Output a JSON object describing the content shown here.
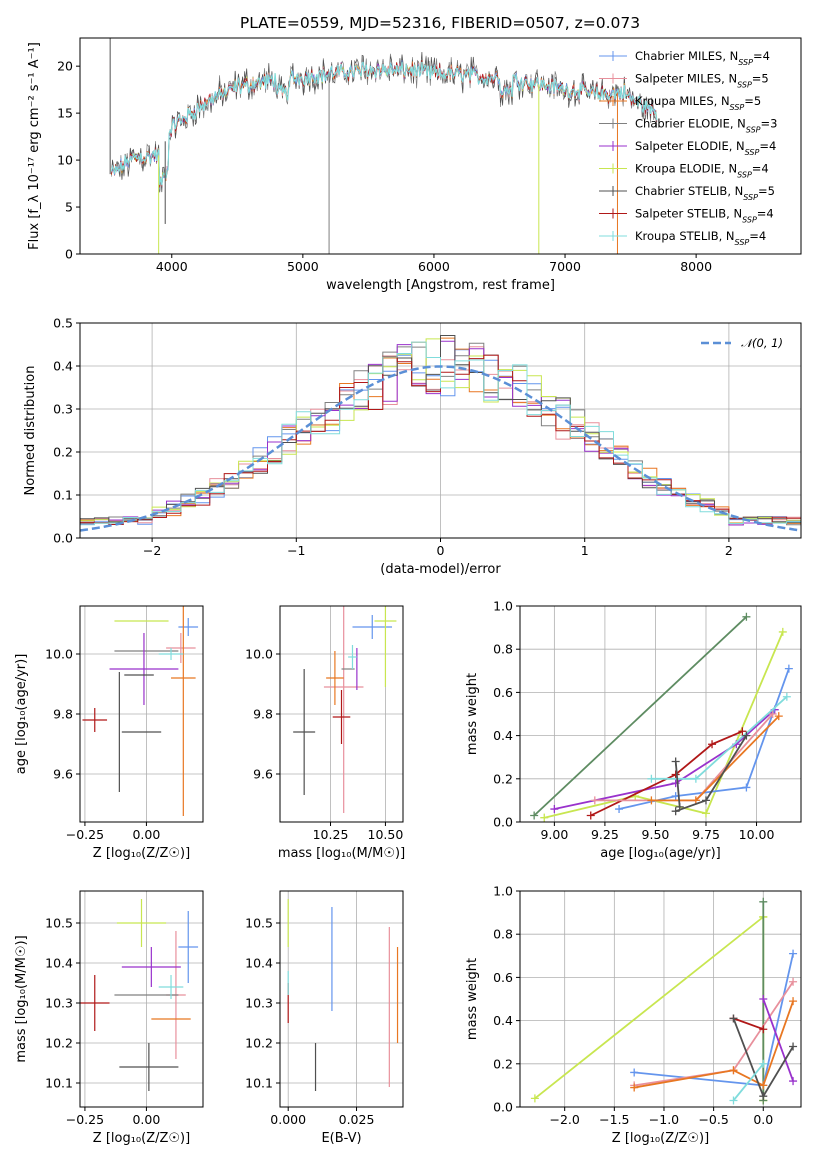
{
  "figure_title": "PLATE=0559, MJD=52316, FIBERID=0507, z=0.073",
  "colors": {
    "chabrier_miles": "#6495ed",
    "salpeter_miles": "#e8909c",
    "kroupa_miles": "#e87722",
    "chabrier_elodie": "#808080",
    "salpeter_elodie": "#9932cc",
    "kroupa_elodie": "#c8e650",
    "chabrier_stelib": "#505050",
    "salpeter_stelib": "#b01818",
    "kroupa_stelib": "#80dcdc",
    "norm_curve": "#5b8fd6",
    "fit_green": "#5e8c62"
  },
  "chart_data": [
    {
      "id": "spectrum",
      "type": "line",
      "xlabel": "wavelength [Angstrom, rest frame]",
      "ylabel": "Flux [f_λ 10⁻¹⁷ erg cm⁻² s⁻¹ A⁻¹]",
      "xlim": [
        3300,
        8800
      ],
      "ylim": [
        0,
        23
      ],
      "xticks": [
        4000,
        5000,
        6000,
        7000,
        8000
      ],
      "yticks": [
        0,
        5,
        10,
        15,
        20
      ],
      "grid": false,
      "legend_position": "top-right",
      "legend": [
        {
          "base": "Chabrier MILES, N",
          "sub": "SSP",
          "tail": "=4",
          "color": "#6495ed"
        },
        {
          "base": "Salpeter MILES, N",
          "sub": "SSP",
          "tail": "=5",
          "color": "#e8909c"
        },
        {
          "base": "Kroupa MILES, N",
          "sub": "SSP",
          "tail": "=5",
          "color": "#e87722"
        },
        {
          "base": "Chabrier ELODIE, N",
          "sub": "SSP",
          "tail": "=3",
          "color": "#808080"
        },
        {
          "base": "Salpeter ELODIE, N",
          "sub": "SSP",
          "tail": "=4",
          "color": "#9932cc"
        },
        {
          "base": "Kroupa ELODIE, N",
          "sub": "SSP",
          "tail": "=4",
          "color": "#c8e650"
        },
        {
          "base": "Chabrier STELIB, N",
          "sub": "SSP",
          "tail": "=5",
          "color": "#505050"
        },
        {
          "base": "Salpeter STELIB, N",
          "sub": "SSP",
          "tail": "=4",
          "color": "#b01818"
        },
        {
          "base": "Kroupa STELIB, N",
          "sub": "SSP",
          "tail": "=4",
          "color": "#80dcdc"
        }
      ],
      "continuum_x": [
        3540,
        3700,
        3900,
        4000,
        4100,
        4300,
        4500,
        4800,
        5000,
        5200,
        5500,
        5800,
        6000,
        6300,
        6600,
        6900,
        7100,
        7300,
        7450,
        7500,
        7600,
        7700
      ],
      "continuum_y": [
        8.5,
        10.2,
        10.5,
        13.5,
        14.5,
        16.5,
        17.8,
        18.6,
        18.8,
        19.2,
        19.6,
        19.6,
        19.3,
        19.0,
        18.6,
        17.8,
        17.4,
        17.0,
        17.2,
        16.5,
        15.8,
        15.0
      ],
      "spikes": [
        {
          "x": 3530,
          "y": 23,
          "color": "#505050"
        },
        {
          "x": 3900,
          "y": 0,
          "color": "#c8e650"
        },
        {
          "x": 3950,
          "y": 3.2,
          "color": "#505050"
        },
        {
          "x": 5200,
          "y": 0,
          "color": "#808080"
        },
        {
          "x": 6800,
          "y": 0,
          "color": "#c8e650"
        },
        {
          "x": 7400,
          "y": 0,
          "color": "#e87722"
        }
      ]
    },
    {
      "id": "residuals",
      "type": "histogram",
      "xlabel": "(data-model)/error",
      "ylabel": "Normed distribution",
      "xlim": [
        -2.5,
        2.5
      ],
      "ylim": [
        0,
        0.5
      ],
      "xticks": [
        -2,
        -1,
        0,
        1,
        2
      ],
      "yticks": [
        0.0,
        0.1,
        0.2,
        0.3,
        0.4,
        0.5
      ],
      "grid": true,
      "legend_position": "top-right",
      "curve_label": "𝒩(0, 1)",
      "bin_width": 0.1
    },
    {
      "id": "z_vs_age",
      "type": "errorbar",
      "xlabel": "Z [log₁₀(Z/Z☉)]",
      "ylabel": "age  [log₁₀(age/yr)]",
      "xlim": [
        -0.27,
        0.23
      ],
      "ylim": [
        9.44,
        10.16
      ],
      "xticks": [
        -0.25,
        0.0
      ],
      "yticks": [
        9.6,
        9.8,
        10.0
      ],
      "grid": true,
      "points": [
        {
          "x": 0.17,
          "y": 10.09,
          "xerr": 0.04,
          "yerr": 0.03,
          "color": "#6495ed"
        },
        {
          "x": 0.14,
          "y": 10.02,
          "xerr": 0.06,
          "yerr": 0.05,
          "color": "#e8909c"
        },
        {
          "x": 0.15,
          "y": 9.92,
          "xerr": 0.05,
          "yerr": 0.46,
          "color": "#e87722"
        },
        {
          "x": 0.0,
          "y": 10.01,
          "xerr": 0.13,
          "yerr": 0.0,
          "color": "#808080"
        },
        {
          "x": -0.01,
          "y": 9.95,
          "xerr": 0.14,
          "yerr": 0.12,
          "color": "#9932cc"
        },
        {
          "x": -0.02,
          "y": 10.11,
          "xerr": 0.11,
          "yerr": 0.0,
          "color": "#c8e650"
        },
        {
          "x": -0.03,
          "y": 9.93,
          "xerr": 0.06,
          "yerr": 0.0,
          "color": "#505050"
        },
        {
          "x": -0.11,
          "y": 9.74,
          "xerr": 0.0,
          "yerr": 0.2,
          "color": "#505050"
        },
        {
          "x": -0.02,
          "y": 9.74,
          "xerr": 0.08,
          "yerr": 0.0,
          "color": "#505050"
        },
        {
          "x": -0.21,
          "y": 9.78,
          "xerr": 0.05,
          "yerr": 0.04,
          "color": "#b01818"
        },
        {
          "x": 0.1,
          "y": 10.0,
          "xerr": 0.05,
          "yerr": 0.02,
          "color": "#80dcdc"
        }
      ]
    },
    {
      "id": "mass_vs_age",
      "type": "errorbar",
      "xlabel": "mass [log₁₀(M/M☉)]",
      "ylabel": "",
      "xlim": [
        10.02,
        10.58
      ],
      "ylim": [
        9.44,
        10.16
      ],
      "xticks": [
        10.25,
        10.5
      ],
      "yticks": [
        9.6,
        9.8,
        10.0
      ],
      "grid": true,
      "points": [
        {
          "x": 10.44,
          "y": 10.09,
          "xerr": 0.09,
          "yerr": 0.04,
          "color": "#6495ed"
        },
        {
          "x": 10.31,
          "y": 9.89,
          "xerr": 0.09,
          "yerr": 0.42,
          "color": "#e8909c"
        },
        {
          "x": 10.27,
          "y": 9.92,
          "xerr": 0.04,
          "yerr": 0.09,
          "color": "#e87722"
        },
        {
          "x": 10.33,
          "y": 9.95,
          "xerr": 0.03,
          "yerr": 0.0,
          "color": "#808080"
        },
        {
          "x": 10.37,
          "y": 9.95,
          "xerr": 0.0,
          "yerr": 0.07,
          "color": "#9932cc"
        },
        {
          "x": 10.5,
          "y": 10.11,
          "xerr": 0.05,
          "yerr": 0.22,
          "color": "#c8e650"
        },
        {
          "x": 10.13,
          "y": 9.74,
          "xerr": 0.05,
          "yerr": 0.21,
          "color": "#505050"
        },
        {
          "x": 10.3,
          "y": 9.79,
          "xerr": 0.04,
          "yerr": 0.09,
          "color": "#b01818"
        },
        {
          "x": 10.35,
          "y": 9.99,
          "xerr": 0.02,
          "yerr": 0.04,
          "color": "#80dcdc"
        }
      ]
    },
    {
      "id": "age_weights",
      "type": "line",
      "xlabel": "age  [log₁₀(age/yr)]",
      "ylabel": "mass weight",
      "xlim": [
        8.83,
        10.22
      ],
      "ylim": [
        0.0,
        1.0
      ],
      "xticks": [
        9.0,
        9.25,
        9.5,
        9.75,
        10.0
      ],
      "yticks": [
        0.0,
        0.2,
        0.4,
        0.6,
        0.8,
        1.0
      ],
      "grid": true,
      "series": [
        {
          "x": [
            8.9,
            9.95
          ],
          "y": [
            0.03,
            0.95
          ],
          "color": "#5e8c62"
        },
        {
          "x": [
            8.95,
            9.4,
            9.75,
            10.13
          ],
          "y": [
            0.02,
            0.12,
            0.04,
            0.88
          ],
          "color": "#c8e650"
        },
        {
          "x": [
            9.0,
            9.6,
            9.9,
            10.09
          ],
          "y": [
            0.06,
            0.18,
            0.36,
            0.52
          ],
          "color": "#9932cc"
        },
        {
          "x": [
            9.18,
            9.6,
            9.78,
            9.93
          ],
          "y": [
            0.03,
            0.22,
            0.36,
            0.42
          ],
          "color": "#b01818"
        },
        {
          "x": [
            9.32,
            9.6,
            9.95,
            10.16
          ],
          "y": [
            0.06,
            0.12,
            0.16,
            0.71
          ],
          "color": "#6495ed"
        },
        {
          "x": [
            9.2,
            9.7,
            10.08
          ],
          "y": [
            0.1,
            0.1,
            0.5
          ],
          "color": "#e8909c"
        },
        {
          "x": [
            9.48,
            9.7,
            10.11
          ],
          "y": [
            0.1,
            0.1,
            0.49
          ],
          "color": "#e87722"
        },
        {
          "x": [
            9.48,
            9.7,
            10.15
          ],
          "y": [
            0.2,
            0.2,
            0.58
          ],
          "color": "#80dcdc"
        },
        {
          "x": [
            9.6,
            9.75,
            9.95
          ],
          "y": [
            0.05,
            0.1,
            0.4
          ],
          "color": "#505050"
        },
        {
          "x": [
            9.6,
            9.62
          ],
          "y": [
            0.28,
            0.07
          ],
          "color": "#505050"
        }
      ]
    },
    {
      "id": "z_vs_mass",
      "type": "errorbar",
      "xlabel": "Z [log₁₀(Z/Z☉)]",
      "ylabel": "mass [log₁₀(M/M☉)]",
      "xlim": [
        -0.27,
        0.23
      ],
      "ylim": [
        10.04,
        10.58
      ],
      "xticks": [
        -0.25,
        0.0
      ],
      "yticks": [
        10.1,
        10.2,
        10.3,
        10.4,
        10.5
      ],
      "grid": true,
      "points": [
        {
          "x": 0.17,
          "y": 10.44,
          "xerr": 0.04,
          "yerr": 0.09,
          "color": "#6495ed"
        },
        {
          "x": 0.12,
          "y": 10.32,
          "xerr": 0.04,
          "yerr": 0.16,
          "color": "#e8909c"
        },
        {
          "x": 0.1,
          "y": 10.26,
          "xerr": 0.08,
          "yerr": 0.0,
          "color": "#e87722"
        },
        {
          "x": 0.0,
          "y": 10.32,
          "xerr": 0.13,
          "yerr": 0.0,
          "color": "#808080"
        },
        {
          "x": 0.02,
          "y": 10.39,
          "xerr": 0.12,
          "yerr": 0.05,
          "color": "#9932cc"
        },
        {
          "x": -0.02,
          "y": 10.5,
          "xerr": 0.1,
          "yerr": 0.06,
          "color": "#c8e650"
        },
        {
          "x": 0.01,
          "y": 10.14,
          "xerr": 0.12,
          "yerr": 0.06,
          "color": "#505050"
        },
        {
          "x": -0.21,
          "y": 10.3,
          "xerr": 0.06,
          "yerr": 0.07,
          "color": "#b01818"
        },
        {
          "x": 0.1,
          "y": 10.34,
          "xerr": 0.05,
          "yerr": 0.03,
          "color": "#80dcdc"
        }
      ]
    },
    {
      "id": "ebv_vs_mass",
      "type": "errorbar",
      "xlabel": "E(B-V)",
      "ylabel": "",
      "xlim": [
        -0.003,
        0.042
      ],
      "ylim": [
        10.04,
        10.58
      ],
      "xticks": [
        0.0,
        0.025
      ],
      "yticks": [
        10.1,
        10.2,
        10.3,
        10.4,
        10.5
      ],
      "grid": true,
      "points": [
        {
          "x": 0.016,
          "y": 10.41,
          "xerr": 0.0,
          "yerr": 0.13,
          "color": "#6495ed"
        },
        {
          "x": 0.037,
          "y": 10.29,
          "xerr": 0.0,
          "yerr": 0.2,
          "color": "#e8909c"
        },
        {
          "x": 0.04,
          "y": 10.32,
          "xerr": 0.0,
          "yerr": 0.12,
          "color": "#e87722"
        },
        {
          "x": 0.0,
          "y": 10.5,
          "xerr": 0.0,
          "yerr": 0.06,
          "color": "#c8e650"
        },
        {
          "x": 0.01,
          "y": 10.14,
          "xerr": 0.0,
          "yerr": 0.06,
          "color": "#505050"
        },
        {
          "x": 0.0,
          "y": 10.3,
          "xerr": 0.0,
          "yerr": 0.05,
          "color": "#b01818"
        },
        {
          "x": 0.0,
          "y": 10.35,
          "xerr": 0.0,
          "yerr": 0.03,
          "color": "#80dcdc"
        }
      ]
    },
    {
      "id": "z_weights",
      "type": "line",
      "xlabel": "Z [log₁₀(Z/Z☉)]",
      "ylabel": "mass weight",
      "xlim": [
        -2.45,
        0.38
      ],
      "ylim": [
        0.0,
        1.0
      ],
      "xticks": [
        -2.0,
        -1.5,
        -1.0,
        -0.5,
        0.0
      ],
      "yticks": [
        0.0,
        0.2,
        0.4,
        0.6,
        0.8,
        1.0
      ],
      "grid": true,
      "series": [
        {
          "x": [
            -2.3,
            0.0
          ],
          "y": [
            0.04,
            0.88
          ],
          "color": "#c8e650"
        },
        {
          "x": [
            0.0,
            0.0,
            0.0
          ],
          "y": [
            0.88,
            0.03,
            0.03
          ],
          "color": "#c8e650"
        },
        {
          "x": [
            0.0,
            0.0
          ],
          "y": [
            0.95,
            0.03
          ],
          "color": "#5e8c62"
        },
        {
          "x": [
            -1.3,
            0.0,
            0.3
          ],
          "y": [
            0.16,
            0.1,
            0.71
          ],
          "color": "#6495ed"
        },
        {
          "x": [
            -1.3,
            -0.3,
            0.3
          ],
          "y": [
            0.1,
            0.17,
            0.58
          ],
          "color": "#e8909c"
        },
        {
          "x": [
            -1.3,
            -0.3,
            0.0,
            0.3
          ],
          "y": [
            0.09,
            0.17,
            0.1,
            0.49
          ],
          "color": "#e87722"
        },
        {
          "x": [
            0.0,
            0.3
          ],
          "y": [
            0.5,
            0.12
          ],
          "color": "#9932cc"
        },
        {
          "x": [
            -0.3,
            0.0
          ],
          "y": [
            0.41,
            0.36
          ],
          "color": "#b01818"
        },
        {
          "x": [
            -0.3,
            0.0,
            0.3
          ],
          "y": [
            0.41,
            0.05,
            0.28
          ],
          "color": "#505050"
        },
        {
          "x": [
            -0.3,
            0.0
          ],
          "y": [
            0.03,
            0.2
          ],
          "color": "#80dcdc"
        }
      ]
    }
  ]
}
